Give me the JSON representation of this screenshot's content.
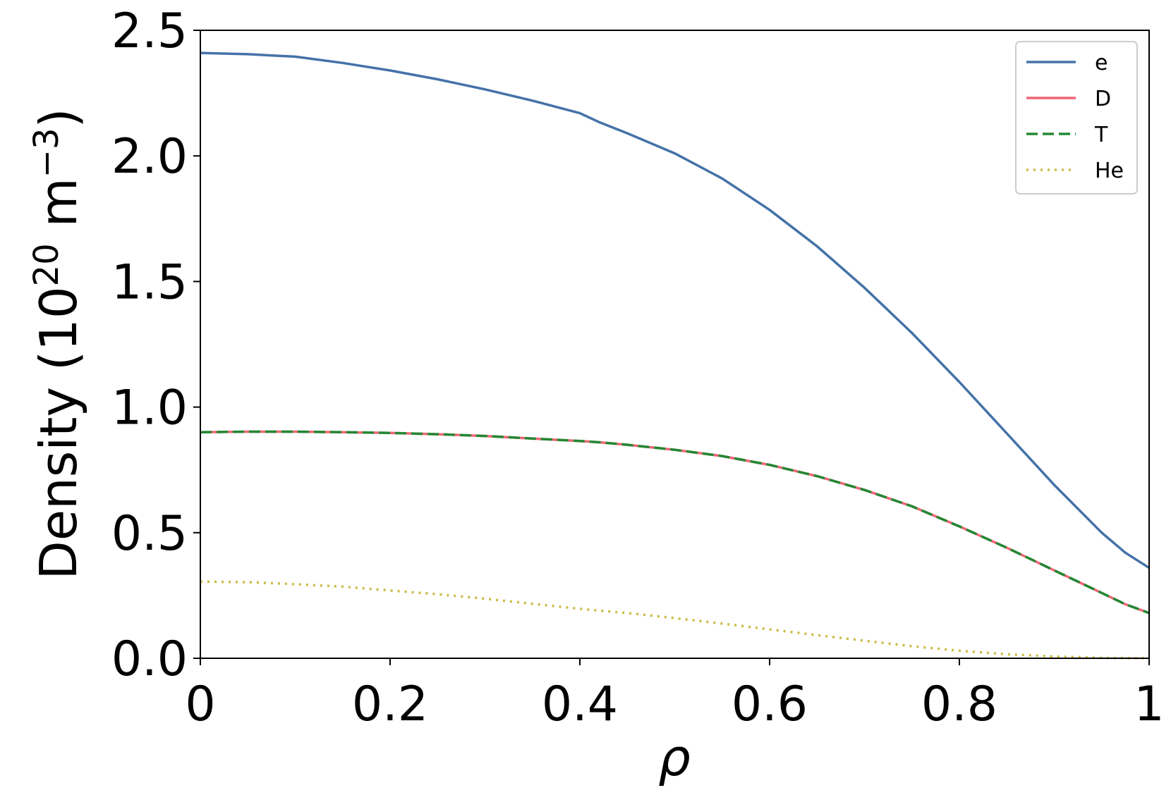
{
  "chart_data": {
    "type": "line",
    "title": "",
    "xlabel": "ρ",
    "ylabel": {
      "prefix": "Density (10",
      "exp1": "20",
      "mid": " m",
      "exp2": "−3",
      "suffix": ")"
    },
    "xlim": [
      0,
      1
    ],
    "ylim": [
      0,
      2.5
    ],
    "xticks": [
      0,
      0.2,
      0.4,
      0.6,
      0.8,
      1
    ],
    "xtick_labels": [
      "0",
      "0.2",
      "0.4",
      "0.6",
      "0.8",
      "1"
    ],
    "yticks": [
      0,
      0.5,
      1,
      1.5,
      2,
      2.5
    ],
    "ytick_labels": [
      "0.0",
      "0.5",
      "1.0",
      "1.5",
      "2.0",
      "2.5"
    ],
    "grid": false,
    "legend_position": "top-right",
    "x": [
      0,
      0.05,
      0.1,
      0.15,
      0.2,
      0.25,
      0.3,
      0.35,
      0.4,
      0.42,
      0.45,
      0.5,
      0.55,
      0.6,
      0.65,
      0.7,
      0.75,
      0.8,
      0.85,
      0.9,
      0.95,
      0.975,
      1
    ],
    "series": [
      {
        "name": "e",
        "color": "#4472a8",
        "style": "solid",
        "values": [
          2.41,
          2.405,
          2.395,
          2.37,
          2.34,
          2.305,
          2.265,
          2.22,
          2.17,
          2.135,
          2.09,
          2.01,
          1.91,
          1.785,
          1.64,
          1.475,
          1.295,
          1.1,
          0.895,
          0.69,
          0.5,
          0.42,
          0.36
        ]
      },
      {
        "name": "D",
        "color": "#ee6677",
        "style": "solid",
        "values": [
          0.9,
          0.902,
          0.902,
          0.9,
          0.897,
          0.892,
          0.885,
          0.875,
          0.865,
          0.86,
          0.85,
          0.83,
          0.805,
          0.77,
          0.725,
          0.67,
          0.605,
          0.525,
          0.44,
          0.35,
          0.26,
          0.215,
          0.18
        ]
      },
      {
        "name": "T",
        "color": "#228833",
        "style": "dashed",
        "values": [
          0.9,
          0.902,
          0.902,
          0.9,
          0.897,
          0.892,
          0.885,
          0.875,
          0.865,
          0.86,
          0.85,
          0.83,
          0.805,
          0.77,
          0.725,
          0.67,
          0.605,
          0.525,
          0.44,
          0.35,
          0.26,
          0.215,
          0.18
        ]
      },
      {
        "name": "He",
        "color": "#ccbb44",
        "style": "dotted",
        "values": [
          0.305,
          0.303,
          0.295,
          0.285,
          0.27,
          0.255,
          0.237,
          0.217,
          0.197,
          0.19,
          0.18,
          0.16,
          0.138,
          0.115,
          0.092,
          0.07,
          0.048,
          0.03,
          0.016,
          0.007,
          0.002,
          0.001,
          0.0
        ]
      }
    ]
  }
}
